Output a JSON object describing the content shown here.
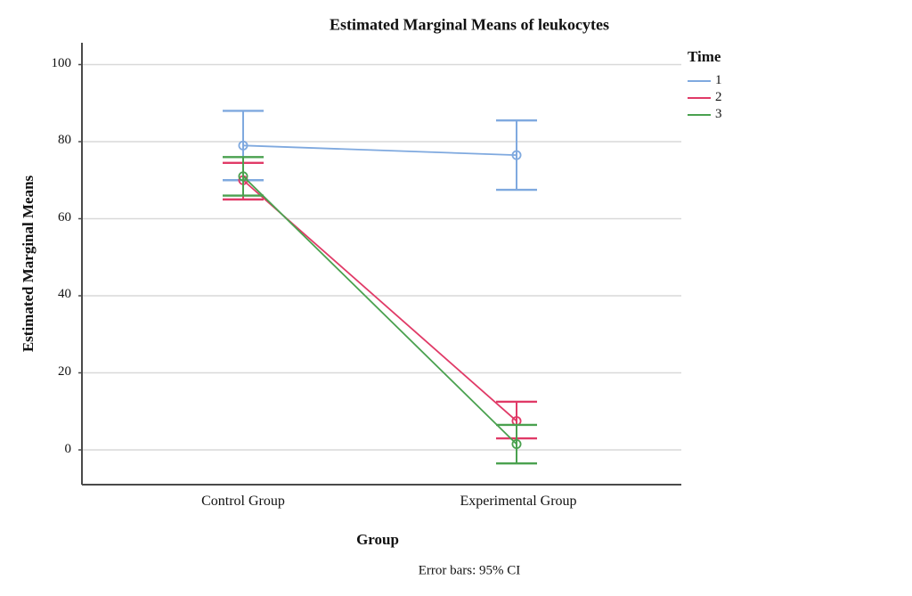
{
  "chart_data": {
    "type": "line",
    "title": "Estimated Marginal Means of leukocytes",
    "xlabel": "Group",
    "ylabel": "Estimated Marginal Means",
    "footnote": "Error bars: 95% CI",
    "categories": [
      "Control Group",
      "Experimental Group"
    ],
    "yticks": [
      0,
      20,
      40,
      60,
      80,
      100
    ],
    "ylim": [
      -9,
      106
    ],
    "grid": true,
    "legend_title": "Time",
    "legend_position": "right",
    "error_bar_type": "95% CI",
    "series": [
      {
        "name": "1",
        "color": "#7FA9DF",
        "means": [
          79,
          76.5
        ],
        "ci_low": [
          70,
          67.5
        ],
        "ci_high": [
          88,
          85.5
        ]
      },
      {
        "name": "2",
        "color": "#E03A67",
        "means": [
          70,
          7.5
        ],
        "ci_low": [
          65,
          3
        ],
        "ci_high": [
          74.5,
          12.5
        ]
      },
      {
        "name": "3",
        "color": "#4AA14F",
        "means": [
          71,
          1.5
        ],
        "ci_low": [
          66,
          -3.5
        ],
        "ci_high": [
          76,
          6.5
        ]
      }
    ],
    "colors": {
      "gridline": "#d9d9d9",
      "axis": "#4a4a4a",
      "text": "#111111"
    }
  }
}
